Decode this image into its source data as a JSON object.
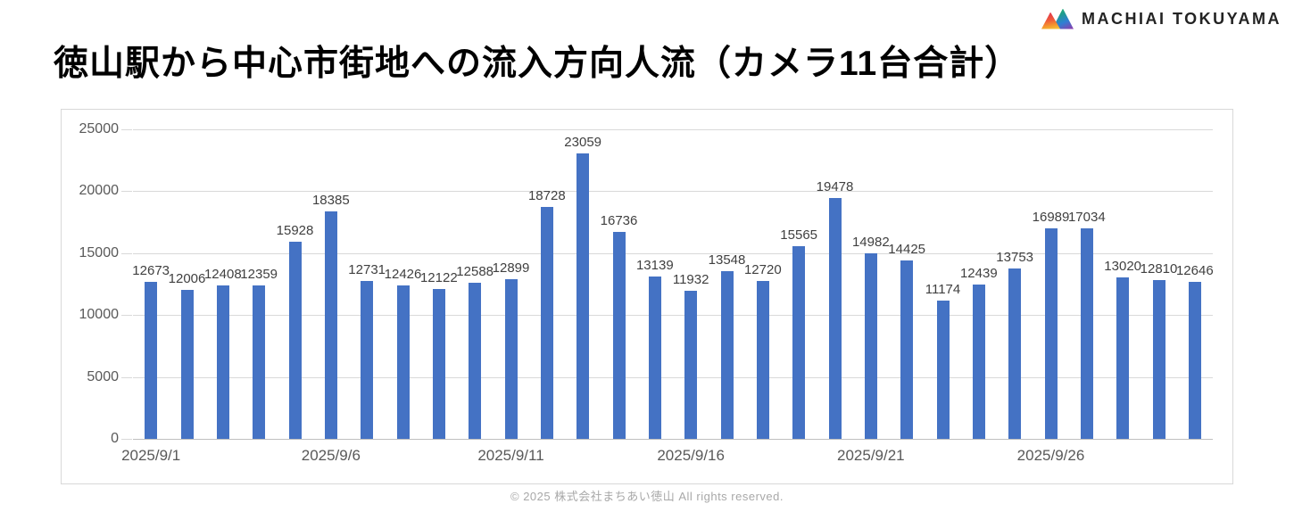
{
  "header": {
    "title": "徳山駅から中心市街地への流入方向人流（カメラ11台合計）",
    "brand": "MACHIAI TOKUYAMA"
  },
  "footer": {
    "copyright": "© 2025 株式会社まちあい徳山  All rights reserved."
  },
  "colors": {
    "bar": "#4472C4",
    "gridline": "#d9d9d9",
    "axis_line": "#bfbfbf",
    "tick_label": "#595959",
    "value_label": "#404040"
  },
  "chart_data": {
    "type": "bar",
    "title": "徳山駅から中心市街地への流入方向人流（カメラ11台合計）",
    "categories": [
      "2025/9/1",
      "2025/9/2",
      "2025/9/3",
      "2025/9/4",
      "2025/9/5",
      "2025/9/6",
      "2025/9/7",
      "2025/9/8",
      "2025/9/9",
      "2025/9/10",
      "2025/9/11",
      "2025/9/12",
      "2025/9/13",
      "2025/9/14",
      "2025/9/15",
      "2025/9/16",
      "2025/9/17",
      "2025/9/18",
      "2025/9/19",
      "2025/9/20",
      "2025/9/21",
      "2025/9/22",
      "2025/9/23",
      "2025/9/24",
      "2025/9/25",
      "2025/9/26",
      "2025/9/27",
      "2025/9/28",
      "2025/9/29",
      "2025/9/30"
    ],
    "values": [
      12673,
      12006,
      12408,
      12359,
      15928,
      18385,
      12731,
      12426,
      12122,
      12588,
      12899,
      18728,
      23059,
      16736,
      13139,
      11932,
      13548,
      12720,
      15565,
      19478,
      14982,
      14425,
      11174,
      12439,
      13753,
      16989,
      17034,
      13020,
      12810,
      12646
    ],
    "xlabel": "",
    "ylabel": "",
    "ylim": [
      0,
      25000
    ],
    "ytick_interval": 5000,
    "xtick_label_interval": 5,
    "grid": true,
    "legend": false,
    "value_labels": true
  }
}
